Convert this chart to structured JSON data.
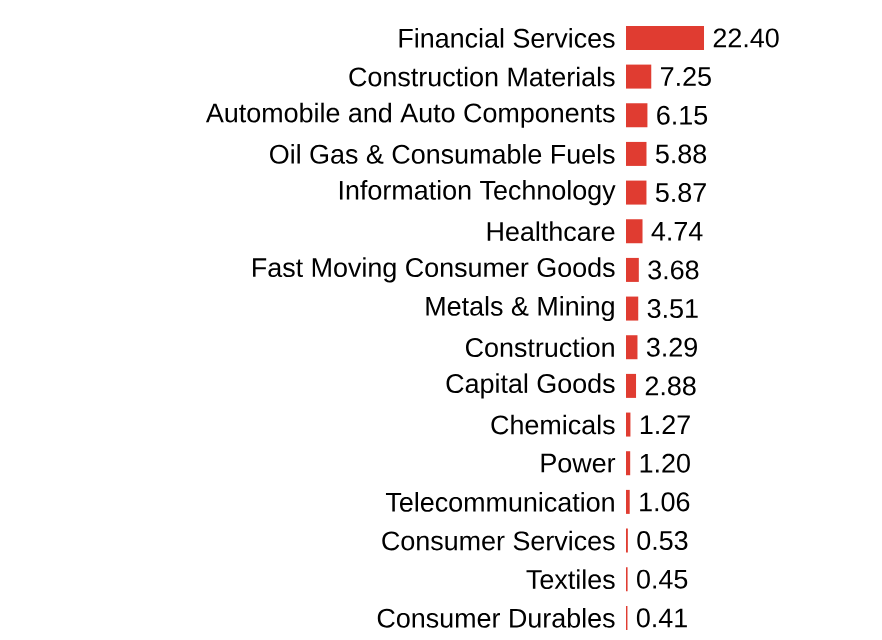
{
  "chart_data": {
    "type": "bar",
    "orientation": "horizontal",
    "color": "#e03c31",
    "categories": [
      "Financial Services",
      "Construction Materials",
      "Automobile and Auto Components",
      "Oil Gas & Consumable Fuels",
      "Information Technology",
      "Healthcare",
      "Fast Moving Consumer Goods",
      "Metals & Mining",
      "Construction",
      "Capital Goods",
      "Chemicals",
      "Power",
      "Telecommunication",
      "Consumer Services",
      "Textiles",
      "Consumer Durables"
    ],
    "values": [
      22.4,
      7.25,
      6.15,
      5.88,
      5.87,
      4.74,
      3.68,
      3.51,
      3.29,
      2.88,
      1.27,
      1.2,
      1.06,
      0.53,
      0.45,
      0.41
    ],
    "value_labels": [
      "22.40",
      "7.25",
      "6.15",
      "5.88",
      "5.87",
      "4.74",
      "3.68",
      "3.51",
      "3.29",
      "2.88",
      "1.27",
      "1.20",
      "1.06",
      "0.53",
      "0.45",
      "0.41"
    ]
  }
}
